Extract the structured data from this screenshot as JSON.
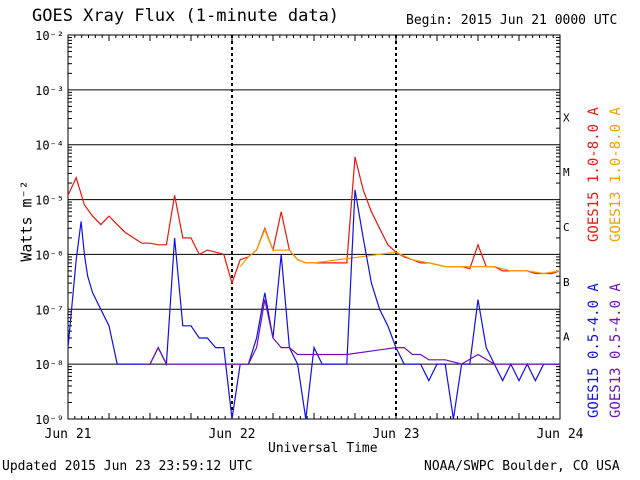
{
  "title": "GOES Xray Flux (1-minute data)",
  "begin": "Begin:  2015 Jun 21 0000 UTC",
  "updated": "Updated 2015 Jun 23 23:59:12 UTC",
  "credit": "NOAA/SWPC Boulder, CO USA",
  "colors": {
    "goes15_long": "#e8180c",
    "goes13_long": "#f0a000",
    "goes15_short": "#1010e8",
    "goes13_short": "#7010b8"
  },
  "chart_data": {
    "type": "line",
    "title": "GOES Xray Flux (1-minute data)",
    "xlabel": "Universal Time",
    "ylabel": "Watts m⁻²",
    "x_ticks": [
      "Jun 21",
      "Jun 22",
      "Jun 23",
      "Jun 24"
    ],
    "xlim_days": [
      0,
      3
    ],
    "ylim": [
      1e-09,
      0.01
    ],
    "yscale": "log",
    "y_tick_labels": [
      "10⁻⁹",
      "10⁻⁸",
      "10⁻⁷",
      "10⁻⁶",
      "10⁻⁵",
      "10⁻⁴",
      "10⁻³",
      "10⁻²"
    ],
    "flare_classes": [
      "A",
      "B",
      "C",
      "M",
      "X"
    ],
    "legend": [
      "GOES15 1.0-8.0 A",
      "GOES13 1.0-8.0 A",
      "GOES15 0.5-4.0 A",
      "GOES13 0.5-4.0 A"
    ],
    "series": [
      {
        "name": "GOES15 1.0-8.0 A",
        "points": [
          [
            0.0,
            1.2e-05
          ],
          [
            0.05,
            2.5e-05
          ],
          [
            0.1,
            8e-06
          ],
          [
            0.15,
            5e-06
          ],
          [
            0.2,
            3.5e-06
          ],
          [
            0.25,
            5e-06
          ],
          [
            0.3,
            3.5e-06
          ],
          [
            0.35,
            2.5e-06
          ],
          [
            0.4,
            2e-06
          ],
          [
            0.45,
            1.6e-06
          ],
          [
            0.5,
            1.6e-06
          ],
          [
            0.55,
            1.5e-06
          ],
          [
            0.6,
            1.5e-06
          ],
          [
            0.65,
            1.2e-05
          ],
          [
            0.7,
            2e-06
          ],
          [
            0.75,
            2e-06
          ],
          [
            0.8,
            1e-06
          ],
          [
            0.85,
            1.2e-06
          ],
          [
            0.9,
            1.1e-06
          ],
          [
            0.95,
            1e-06
          ],
          [
            1.0,
            3e-07
          ],
          [
            1.05,
            8e-07
          ],
          [
            1.1,
            9e-07
          ],
          [
            1.15,
            1.2e-06
          ],
          [
            1.2,
            3e-06
          ],
          [
            1.25,
            1.2e-06
          ],
          [
            1.3,
            6e-06
          ],
          [
            1.35,
            1.2e-06
          ],
          [
            1.4,
            8e-07
          ],
          [
            1.45,
            7e-07
          ],
          [
            1.5,
            7e-07
          ],
          [
            1.55,
            7e-07
          ],
          [
            1.6,
            7e-07
          ],
          [
            1.65,
            7e-07
          ],
          [
            1.7,
            7e-07
          ],
          [
            1.75,
            6e-05
          ],
          [
            1.8,
            1.5e-05
          ],
          [
            1.85,
            6e-06
          ],
          [
            1.9,
            3e-06
          ],
          [
            1.95,
            1.5e-06
          ],
          [
            2.0,
            1.1e-06
          ],
          [
            2.05,
            9e-07
          ],
          [
            2.1,
            8e-07
          ],
          [
            2.15,
            7e-07
          ],
          [
            2.2,
            7e-07
          ],
          [
            2.25,
            6.5e-07
          ],
          [
            2.3,
            6e-07
          ],
          [
            2.35,
            6e-07
          ],
          [
            2.4,
            6e-07
          ],
          [
            2.45,
            5.5e-07
          ],
          [
            2.5,
            1.5e-06
          ],
          [
            2.55,
            6e-07
          ],
          [
            2.6,
            6e-07
          ],
          [
            2.65,
            5e-07
          ],
          [
            2.7,
            5e-07
          ],
          [
            2.75,
            5e-07
          ],
          [
            2.8,
            5e-07
          ],
          [
            2.85,
            4.5e-07
          ],
          [
            2.9,
            4.5e-07
          ],
          [
            2.95,
            4.5e-07
          ],
          [
            3.0,
            5e-07
          ]
        ]
      },
      {
        "name": "GOES13 1.0-8.0 A",
        "points": [
          [
            1.05,
            6e-07
          ],
          [
            1.1,
            9e-07
          ],
          [
            1.15,
            1.2e-06
          ],
          [
            1.2,
            2.8e-06
          ],
          [
            1.25,
            1.2e-06
          ],
          [
            1.3,
            1.2e-06
          ],
          [
            1.35,
            1.2e-06
          ],
          [
            1.4,
            8e-07
          ],
          [
            1.45,
            7e-07
          ],
          [
            1.5,
            7e-07
          ],
          [
            2.0,
            1.1e-06
          ],
          [
            2.1,
            8e-07
          ],
          [
            2.2,
            7e-07
          ],
          [
            2.3,
            6e-07
          ],
          [
            2.4,
            6e-07
          ],
          [
            2.5,
            6e-07
          ],
          [
            2.6,
            6e-07
          ],
          [
            2.7,
            5e-07
          ],
          [
            2.8,
            5e-07
          ],
          [
            2.9,
            4.5e-07
          ],
          [
            3.0,
            5e-07
          ]
        ]
      },
      {
        "name": "GOES15 0.5-4.0 A",
        "points": [
          [
            0.0,
            2e-08
          ],
          [
            0.05,
            8e-07
          ],
          [
            0.08,
            4e-06
          ],
          [
            0.1,
            1e-06
          ],
          [
            0.12,
            4e-07
          ],
          [
            0.15,
            2e-07
          ],
          [
            0.2,
            1e-07
          ],
          [
            0.25,
            5e-08
          ],
          [
            0.3,
            1e-08
          ],
          [
            0.35,
            1e-08
          ],
          [
            0.4,
            1e-08
          ],
          [
            0.45,
            1e-08
          ],
          [
            0.5,
            1e-08
          ],
          [
            0.55,
            2e-08
          ],
          [
            0.6,
            1e-08
          ],
          [
            0.65,
            2e-06
          ],
          [
            0.7,
            5e-08
          ],
          [
            0.75,
            5e-08
          ],
          [
            0.8,
            3e-08
          ],
          [
            0.85,
            3e-08
          ],
          [
            0.9,
            2e-08
          ],
          [
            0.95,
            2e-08
          ],
          [
            1.0,
            1e-09
          ],
          [
            1.05,
            1e-08
          ],
          [
            1.1,
            1e-08
          ],
          [
            1.15,
            3e-08
          ],
          [
            1.2,
            2e-07
          ],
          [
            1.25,
            3e-08
          ],
          [
            1.3,
            1e-06
          ],
          [
            1.35,
            2e-08
          ],
          [
            1.4,
            1e-08
          ],
          [
            1.45,
            1e-09
          ],
          [
            1.5,
            2e-08
          ],
          [
            1.55,
            1e-08
          ],
          [
            1.6,
            1e-08
          ],
          [
            1.65,
            1e-08
          ],
          [
            1.7,
            1e-08
          ],
          [
            1.75,
            1.5e-05
          ],
          [
            1.8,
            2e-06
          ],
          [
            1.85,
            3e-07
          ],
          [
            1.9,
            1e-07
          ],
          [
            1.95,
            5e-08
          ],
          [
            2.0,
            2e-08
          ],
          [
            2.05,
            1e-08
          ],
          [
            2.1,
            1e-08
          ],
          [
            2.15,
            1e-08
          ],
          [
            2.2,
            5e-09
          ],
          [
            2.25,
            1e-08
          ],
          [
            2.3,
            1e-08
          ],
          [
            2.35,
            1e-09
          ],
          [
            2.4,
            1e-08
          ],
          [
            2.45,
            1e-08
          ],
          [
            2.5,
            1.5e-07
          ],
          [
            2.55,
            2e-08
          ],
          [
            2.6,
            1e-08
          ],
          [
            2.65,
            5e-09
          ],
          [
            2.7,
            1e-08
          ],
          [
            2.75,
            5e-09
          ],
          [
            2.8,
            1e-08
          ],
          [
            2.85,
            5e-09
          ],
          [
            2.9,
            1e-08
          ],
          [
            2.95,
            1e-08
          ],
          [
            3.0,
            1e-08
          ]
        ]
      },
      {
        "name": "GOES13 0.5-4.0 A",
        "points": [
          [
            0.45,
            1e-08
          ],
          [
            0.5,
            1e-08
          ],
          [
            0.55,
            2e-08
          ],
          [
            0.6,
            1e-08
          ],
          [
            1.05,
            1e-08
          ],
          [
            1.1,
            1e-08
          ],
          [
            1.15,
            2e-08
          ],
          [
            1.2,
            1.5e-07
          ],
          [
            1.25,
            3e-08
          ],
          [
            1.3,
            2e-08
          ],
          [
            1.35,
            2e-08
          ],
          [
            1.4,
            1.5e-08
          ],
          [
            1.45,
            1.5e-08
          ],
          [
            1.5,
            1.5e-08
          ],
          [
            1.55,
            1.5e-08
          ],
          [
            1.6,
            1.5e-08
          ],
          [
            1.65,
            1.5e-08
          ],
          [
            1.7,
            1.5e-08
          ],
          [
            2.0,
            2e-08
          ],
          [
            2.05,
            2e-08
          ],
          [
            2.1,
            1.5e-08
          ],
          [
            2.15,
            1.5e-08
          ],
          [
            2.2,
            1.2e-08
          ],
          [
            2.3,
            1.2e-08
          ],
          [
            2.4,
            1e-08
          ],
          [
            2.5,
            1.5e-08
          ],
          [
            2.6,
            1e-08
          ],
          [
            2.7,
            1e-08
          ],
          [
            2.8,
            1e-08
          ],
          [
            2.9,
            1e-08
          ],
          [
            3.0,
            1e-08
          ]
        ]
      }
    ]
  }
}
